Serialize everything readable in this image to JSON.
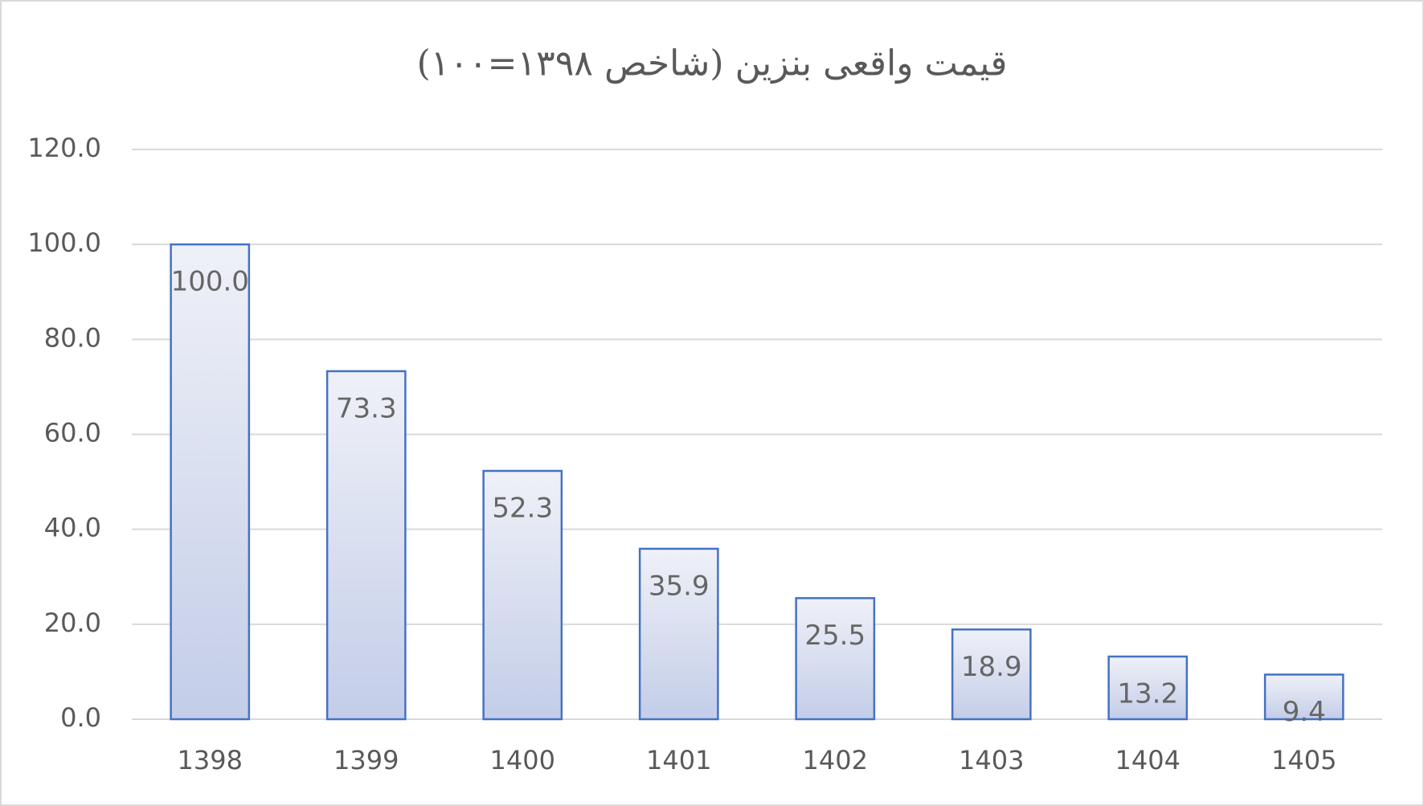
{
  "chart_data": {
    "type": "bar",
    "title": "قیمت واقعی بنزین (شاخص ۱۳۹۸=۱۰۰)",
    "categories": [
      "1398",
      "1399",
      "1400",
      "1401",
      "1402",
      "1403",
      "1404",
      "1405"
    ],
    "values": [
      100,
      73.3,
      52.3,
      35.9,
      25.5,
      18.9,
      13.2,
      9.4
    ],
    "value_labels": [
      "100.0",
      "73.3",
      "52.3",
      "35.9",
      "25.5",
      "18.9",
      "13.2",
      "9.4"
    ],
    "color": "#4472c4",
    "ylim": [
      0,
      120
    ],
    "yticks": [
      {
        "value": 0,
        "label": "0.0"
      },
      {
        "value": 20,
        "label": "20.0"
      },
      {
        "value": 40,
        "label": "40.0"
      },
      {
        "value": 60,
        "label": "60.0"
      },
      {
        "value": 80,
        "label": "80.0"
      },
      {
        "value": 100,
        "label": "100.0"
      },
      {
        "value": 120,
        "label": "120.0"
      }
    ],
    "grid": true
  }
}
